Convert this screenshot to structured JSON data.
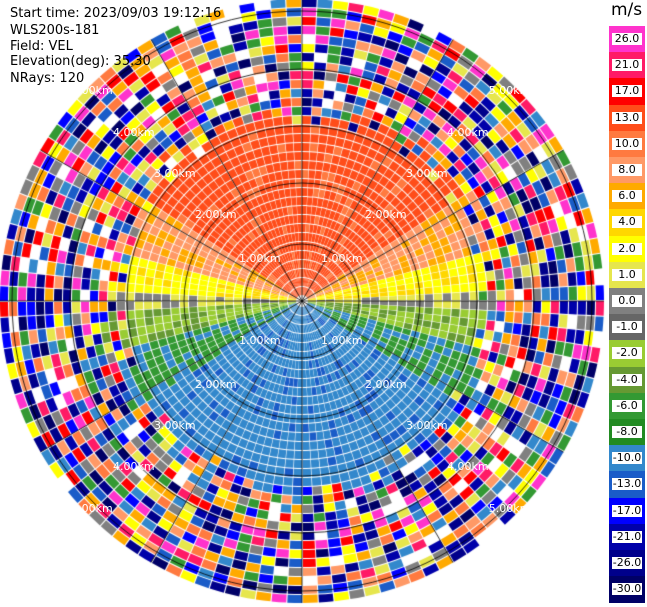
{
  "header": {
    "start_time": "Start time: 2023/09/03 19:12:16",
    "instrument": "WLS200s-181",
    "field": "Field: VEL",
    "elevation": "Elevation(deg): 35.30",
    "nrays": "NRays: 120"
  },
  "range_rings": {
    "labels": [
      "1.00km",
      "2.00km",
      "3.00km",
      "4.00km",
      "5.00km"
    ]
  },
  "colorbar": {
    "unit": "m/s",
    "ticks": [
      "26.0",
      "21.0",
      "17.0",
      "13.0",
      "10.0",
      "8.0",
      "6.0",
      "4.0",
      "2.0",
      "1.0",
      "0.0",
      "-1.0",
      "-2.0",
      "-4.0",
      "-6.0",
      "-8.0",
      "-10.0",
      "-13.0",
      "-17.0",
      "-21.0",
      "-26.0",
      "-30.0"
    ],
    "colors": [
      "#ff33cc",
      "#ff1a66",
      "#ff0000",
      "#ff4d1a",
      "#ff7a40",
      "#ff9966",
      "#ffaa00",
      "#ffd700",
      "#ffff00",
      "#e6e64d",
      "#808080",
      "#666666",
      "#99cc33",
      "#669933",
      "#339933",
      "#228b22",
      "#3388cc",
      "#1a5cc8",
      "#0000ff",
      "#0000aa",
      "#00008b",
      "#000066"
    ]
  },
  "colors": {
    "ring_line": "#000000",
    "spoke_line": "#000000"
  }
}
